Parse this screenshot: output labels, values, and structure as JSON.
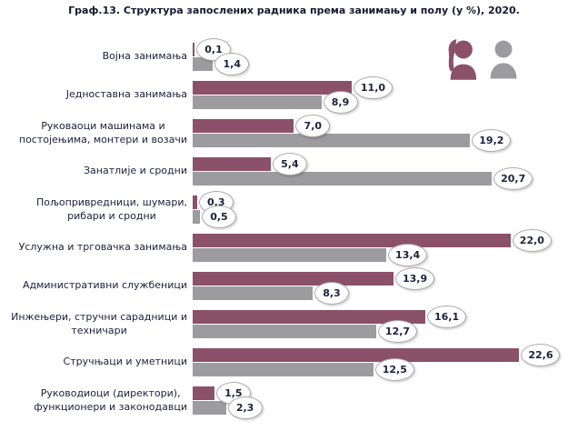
{
  "chart_data": {
    "type": "bar",
    "orientation": "horizontal",
    "title": "Граф.13.  Структура запослених радника према занимању и полу  (у %), 2020.",
    "unit": "%",
    "xlim": [
      0,
      24
    ],
    "legend_position": "top-right",
    "grid": false,
    "categories": [
      "Војна занимања",
      "Једноставна занимања",
      "Руковаоци машинама и\nпостојењима, монтери и возачи",
      "Занатлије и сродни",
      "Пољопривредници, шумари,\nрибари и сродни",
      "Услужна  и трговачка занимања",
      "Административни службеници",
      "Инжењери, стручни сарадници и\nтехничари",
      "Стручњаци и уметници",
      "Руководиоци (директори),\nфункционери и законодавци"
    ],
    "series": [
      {
        "key": "female",
        "icon": "female-silhouette-icon",
        "color": "#8B5169",
        "values": [
          0.1,
          11.0,
          7.0,
          5.4,
          0.3,
          22.0,
          13.9,
          16.1,
          22.6,
          1.5
        ],
        "labels": [
          "0,1",
          "11,0",
          "7,0",
          "5,4",
          "0,3",
          "22,0",
          "13,9",
          "16,1",
          "22,6",
          "1,5"
        ]
      },
      {
        "key": "male",
        "icon": "male-silhouette-icon",
        "color": "#9C9B9D",
        "values": [
          1.4,
          8.9,
          19.2,
          20.7,
          0.5,
          13.4,
          8.3,
          12.7,
          12.5,
          2.3
        ],
        "labels": [
          "1,4",
          "8,9",
          "19,2",
          "20,7",
          "0,5",
          "13,4",
          "8,3",
          "12,7",
          "12,5",
          "2,3"
        ]
      }
    ],
    "colors": {
      "female_bar": "#8B5169",
      "male_bar": "#9C9B9D",
      "value_label_text": "#20223f",
      "oval_border": "#ababab",
      "title_text": "#17182f"
    }
  }
}
